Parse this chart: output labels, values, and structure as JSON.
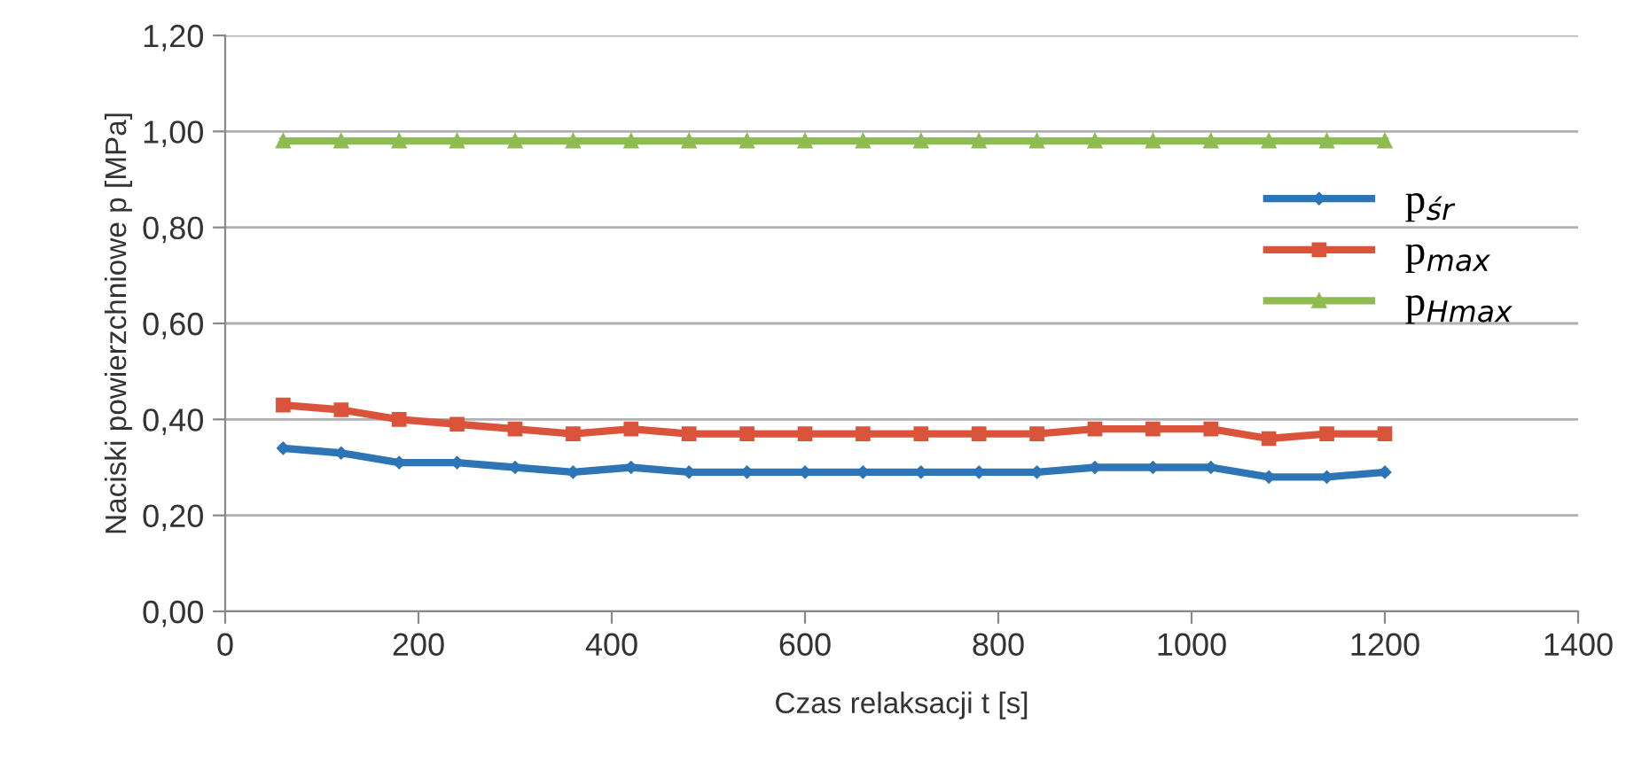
{
  "chart_data": {
    "type": "line",
    "xlabel": "Czas relaksacji t [s]",
    "ylabel": "Naciski powierzchniowe p [MPa]",
    "x": [
      60,
      120,
      180,
      240,
      300,
      360,
      420,
      480,
      540,
      600,
      660,
      720,
      780,
      840,
      900,
      960,
      1020,
      1080,
      1140,
      1200
    ],
    "series": [
      {
        "name": "p$_{śr}$",
        "color": "#2e75b6",
        "marker": "diamond",
        "values": [
          0.34,
          0.33,
          0.31,
          0.31,
          0.3,
          0.29,
          0.3,
          0.29,
          0.29,
          0.29,
          0.29,
          0.29,
          0.29,
          0.29,
          0.3,
          0.3,
          0.3,
          0.28,
          0.28,
          0.29
        ]
      },
      {
        "name": "p$_{max}$",
        "color": "#d9543a",
        "marker": "square",
        "values": [
          0.43,
          0.42,
          0.4,
          0.39,
          0.38,
          0.37,
          0.38,
          0.37,
          0.37,
          0.37,
          0.37,
          0.37,
          0.37,
          0.37,
          0.38,
          0.38,
          0.38,
          0.36,
          0.37,
          0.37
        ]
      },
      {
        "name": "p$_{Hmax}$",
        "color": "#8fbc4f",
        "marker": "triangle",
        "values": [
          0.98,
          0.98,
          0.98,
          0.98,
          0.98,
          0.98,
          0.98,
          0.98,
          0.98,
          0.98,
          0.98,
          0.98,
          0.98,
          0.98,
          0.98,
          0.98,
          0.98,
          0.98,
          0.98,
          0.98
        ]
      }
    ],
    "xlim": [
      0,
      1400
    ],
    "xticks": [
      0,
      200,
      400,
      600,
      800,
      1000,
      1200,
      1400
    ],
    "ylim": [
      0,
      1.2
    ],
    "yticks": [
      {
        "value": 0,
        "label": "0,00"
      },
      {
        "value": 0.2,
        "label": "0,20"
      },
      {
        "value": 0.4,
        "label": "0,40"
      },
      {
        "value": 0.6,
        "label": "0,60"
      },
      {
        "value": 0.8,
        "label": "0,80"
      },
      {
        "value": 1.0,
        "label": "1,00"
      },
      {
        "value": 1.2,
        "label": "1,20"
      }
    ],
    "grid": "y",
    "legend": "right",
    "line_style": "solid"
  }
}
